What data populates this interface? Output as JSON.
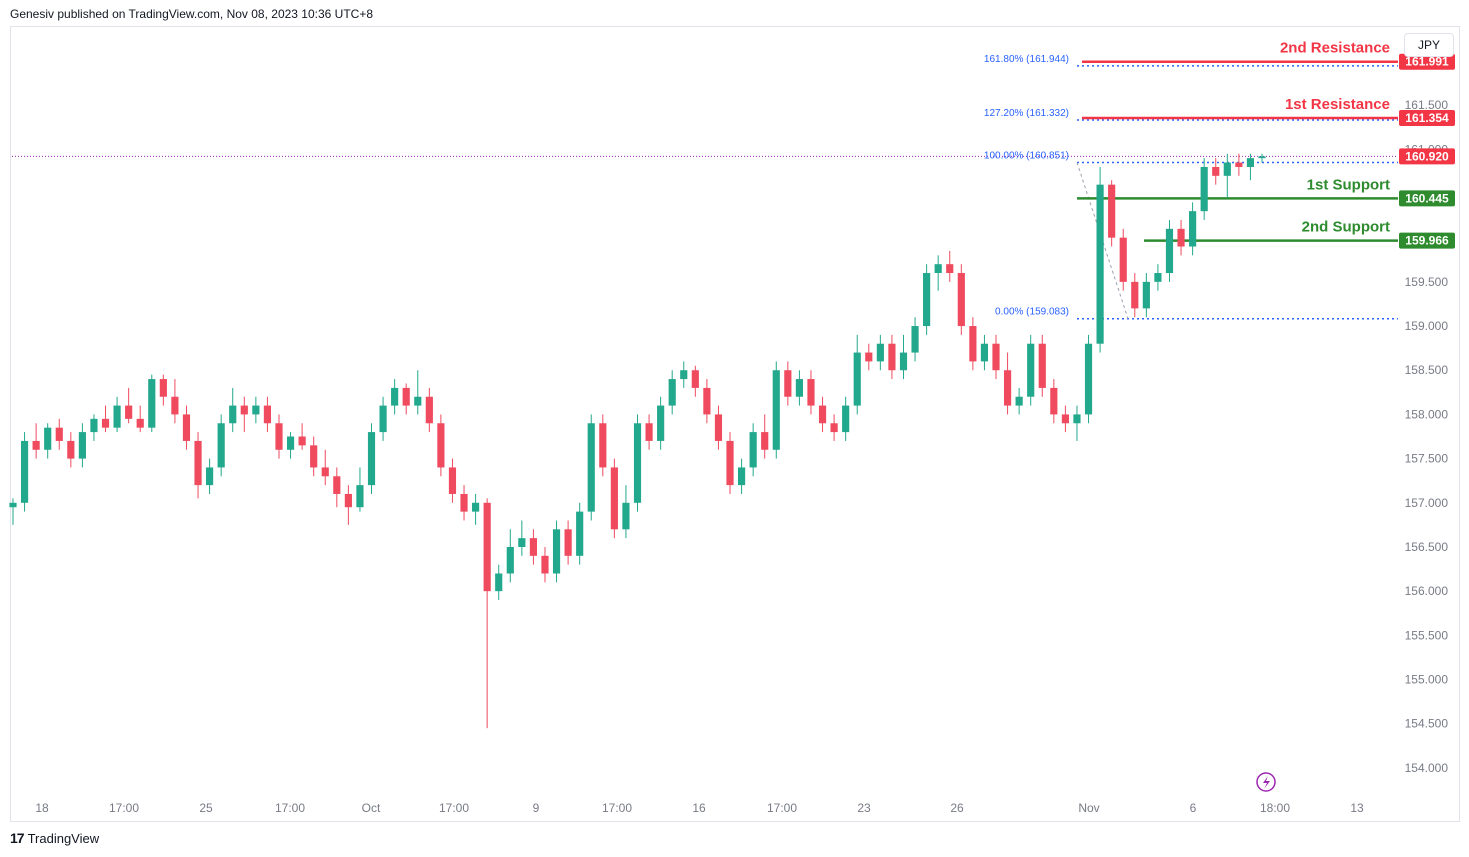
{
  "header": {
    "publisher_text": "Genesiv published on TradingView.com, Nov 08, 2023 10:36 UTC+8"
  },
  "footer": {
    "brand": "TradingView",
    "logo_mark": "17"
  },
  "currency_label": "JPY",
  "colors": {
    "up": "#22a88c",
    "down": "#ef4a5e",
    "resistance": "#f23645",
    "support": "#2e8b2e",
    "fib": "#2962ff",
    "fib_text": "#2962ff",
    "last_price_line": "#9c27b0",
    "grid_text": "#787b86"
  },
  "chart_data": {
    "type": "candlestick",
    "title": "",
    "currency": "JPY",
    "ylim": [
      153.75,
      162.35
    ],
    "y_ticks": [
      "161.500",
      "161.000",
      "159.500",
      "159.000",
      "158.500",
      "158.000",
      "157.500",
      "157.000",
      "156.500",
      "156.000",
      "155.500",
      "155.000",
      "154.500",
      "154.000"
    ],
    "x_ticks": [
      "18",
      "17:00",
      "25",
      "17:00",
      "Oct",
      "17:00",
      "9",
      "17:00",
      "16",
      "17:00",
      "23",
      "26",
      "Nov",
      "6",
      "18:00",
      "13"
    ],
    "levels": [
      {
        "name": "2nd Resistance",
        "value": 161.991,
        "label": "161.991",
        "kind": "resistance"
      },
      {
        "name": "1st Resistance",
        "value": 161.354,
        "label": "161.354",
        "kind": "resistance"
      },
      {
        "name": "1st Support",
        "value": 160.445,
        "label": "160.445",
        "kind": "support"
      },
      {
        "name": "2nd Support",
        "value": 159.966,
        "label": "159.966",
        "kind": "support"
      }
    ],
    "last_price": {
      "value": 160.92,
      "label": "160.920"
    },
    "fibonacci": [
      {
        "label": "161.80% (161.944)",
        "value": 161.944
      },
      {
        "label": "127.20% (161.332)",
        "value": 161.332
      },
      {
        "label": "100.00% (160.851)",
        "value": 160.851
      },
      {
        "label": "0.00% (159.083)",
        "value": 159.083
      }
    ],
    "candles": [
      {
        "o": 156.95,
        "h": 157.05,
        "l": 156.75,
        "c": 157.0
      },
      {
        "o": 157.0,
        "h": 157.8,
        "l": 156.9,
        "c": 157.7
      },
      {
        "o": 157.7,
        "h": 157.9,
        "l": 157.5,
        "c": 157.6
      },
      {
        "o": 157.6,
        "h": 157.9,
        "l": 157.5,
        "c": 157.85
      },
      {
        "o": 157.85,
        "h": 157.95,
        "l": 157.6,
        "c": 157.7
      },
      {
        "o": 157.7,
        "h": 157.8,
        "l": 157.4,
        "c": 157.5
      },
      {
        "o": 157.5,
        "h": 157.9,
        "l": 157.4,
        "c": 157.8
      },
      {
        "o": 157.8,
        "h": 158.0,
        "l": 157.7,
        "c": 157.95
      },
      {
        "o": 157.95,
        "h": 158.1,
        "l": 157.8,
        "c": 157.85
      },
      {
        "o": 157.85,
        "h": 158.2,
        "l": 157.8,
        "c": 158.1
      },
      {
        "o": 158.1,
        "h": 158.3,
        "l": 157.9,
        "c": 157.95
      },
      {
        "o": 157.95,
        "h": 158.1,
        "l": 157.8,
        "c": 157.85
      },
      {
        "o": 157.85,
        "h": 158.45,
        "l": 157.8,
        "c": 158.4
      },
      {
        "o": 158.4,
        "h": 158.45,
        "l": 158.1,
        "c": 158.2
      },
      {
        "o": 158.2,
        "h": 158.4,
        "l": 157.9,
        "c": 158.0
      },
      {
        "o": 158.0,
        "h": 158.1,
        "l": 157.6,
        "c": 157.7
      },
      {
        "o": 157.7,
        "h": 157.8,
        "l": 157.05,
        "c": 157.2
      },
      {
        "o": 157.2,
        "h": 157.5,
        "l": 157.1,
        "c": 157.4
      },
      {
        "o": 157.4,
        "h": 158.0,
        "l": 157.3,
        "c": 157.9
      },
      {
        "o": 157.9,
        "h": 158.3,
        "l": 157.8,
        "c": 158.1
      },
      {
        "o": 158.1,
        "h": 158.2,
        "l": 157.8,
        "c": 158.0
      },
      {
        "o": 158.0,
        "h": 158.2,
        "l": 157.9,
        "c": 158.1
      },
      {
        "o": 158.1,
        "h": 158.2,
        "l": 157.8,
        "c": 157.9
      },
      {
        "o": 157.9,
        "h": 158.0,
        "l": 157.5,
        "c": 157.6
      },
      {
        "o": 157.6,
        "h": 157.8,
        "l": 157.5,
        "c": 157.75
      },
      {
        "o": 157.75,
        "h": 157.9,
        "l": 157.6,
        "c": 157.65
      },
      {
        "o": 157.65,
        "h": 157.75,
        "l": 157.3,
        "c": 157.4
      },
      {
        "o": 157.4,
        "h": 157.6,
        "l": 157.2,
        "c": 157.3
      },
      {
        "o": 157.3,
        "h": 157.4,
        "l": 156.95,
        "c": 157.1
      },
      {
        "o": 157.1,
        "h": 157.2,
        "l": 156.75,
        "c": 156.95
      },
      {
        "o": 156.95,
        "h": 157.4,
        "l": 156.9,
        "c": 157.2
      },
      {
        "o": 157.2,
        "h": 157.9,
        "l": 157.1,
        "c": 157.8
      },
      {
        "o": 157.8,
        "h": 158.2,
        "l": 157.7,
        "c": 158.1
      },
      {
        "o": 158.1,
        "h": 158.4,
        "l": 158.0,
        "c": 158.3
      },
      {
        "o": 158.3,
        "h": 158.35,
        "l": 158.0,
        "c": 158.1
      },
      {
        "o": 158.1,
        "h": 158.5,
        "l": 158.0,
        "c": 158.2
      },
      {
        "o": 158.2,
        "h": 158.3,
        "l": 157.8,
        "c": 157.9
      },
      {
        "o": 157.9,
        "h": 158.0,
        "l": 157.3,
        "c": 157.4
      },
      {
        "o": 157.4,
        "h": 157.5,
        "l": 157.0,
        "c": 157.1
      },
      {
        "o": 157.1,
        "h": 157.2,
        "l": 156.8,
        "c": 156.9
      },
      {
        "o": 156.9,
        "h": 157.1,
        "l": 156.75,
        "c": 157.0
      },
      {
        "o": 157.0,
        "h": 157.05,
        "l": 154.45,
        "c": 156.0
      },
      {
        "o": 156.0,
        "h": 156.3,
        "l": 155.9,
        "c": 156.2
      },
      {
        "o": 156.2,
        "h": 156.7,
        "l": 156.1,
        "c": 156.5
      },
      {
        "o": 156.5,
        "h": 156.8,
        "l": 156.4,
        "c": 156.6
      },
      {
        "o": 156.6,
        "h": 156.7,
        "l": 156.3,
        "c": 156.4
      },
      {
        "o": 156.4,
        "h": 156.5,
        "l": 156.1,
        "c": 156.2
      },
      {
        "o": 156.2,
        "h": 156.8,
        "l": 156.1,
        "c": 156.7
      },
      {
        "o": 156.7,
        "h": 156.8,
        "l": 156.3,
        "c": 156.4
      },
      {
        "o": 156.4,
        "h": 157.0,
        "l": 156.3,
        "c": 156.9
      },
      {
        "o": 156.9,
        "h": 158.0,
        "l": 156.8,
        "c": 157.9
      },
      {
        "o": 157.9,
        "h": 158.0,
        "l": 157.3,
        "c": 157.4
      },
      {
        "o": 157.4,
        "h": 157.5,
        "l": 156.6,
        "c": 156.7
      },
      {
        "o": 156.7,
        "h": 157.2,
        "l": 156.6,
        "c": 157.0
      },
      {
        "o": 157.0,
        "h": 158.0,
        "l": 156.9,
        "c": 157.9
      },
      {
        "o": 157.9,
        "h": 158.0,
        "l": 157.6,
        "c": 157.7
      },
      {
        "o": 157.7,
        "h": 158.2,
        "l": 157.6,
        "c": 158.1
      },
      {
        "o": 158.1,
        "h": 158.5,
        "l": 158.0,
        "c": 158.4
      },
      {
        "o": 158.4,
        "h": 158.6,
        "l": 158.3,
        "c": 158.5
      },
      {
        "o": 158.5,
        "h": 158.55,
        "l": 158.2,
        "c": 158.3
      },
      {
        "o": 158.3,
        "h": 158.4,
        "l": 157.9,
        "c": 158.0
      },
      {
        "o": 158.0,
        "h": 158.1,
        "l": 157.6,
        "c": 157.7
      },
      {
        "o": 157.7,
        "h": 157.8,
        "l": 157.1,
        "c": 157.2
      },
      {
        "o": 157.2,
        "h": 157.5,
        "l": 157.1,
        "c": 157.4
      },
      {
        "o": 157.4,
        "h": 157.9,
        "l": 157.3,
        "c": 157.8
      },
      {
        "o": 157.8,
        "h": 158.0,
        "l": 157.5,
        "c": 157.6
      },
      {
        "o": 157.6,
        "h": 158.6,
        "l": 157.5,
        "c": 158.5
      },
      {
        "o": 158.5,
        "h": 158.6,
        "l": 158.1,
        "c": 158.2
      },
      {
        "o": 158.2,
        "h": 158.5,
        "l": 158.1,
        "c": 158.4
      },
      {
        "o": 158.4,
        "h": 158.5,
        "l": 158.0,
        "c": 158.1
      },
      {
        "o": 158.1,
        "h": 158.2,
        "l": 157.8,
        "c": 157.9
      },
      {
        "o": 157.9,
        "h": 158.0,
        "l": 157.7,
        "c": 157.8
      },
      {
        "o": 157.8,
        "h": 158.2,
        "l": 157.7,
        "c": 158.1
      },
      {
        "o": 158.1,
        "h": 158.9,
        "l": 158.0,
        "c": 158.7
      },
      {
        "o": 158.7,
        "h": 158.8,
        "l": 158.5,
        "c": 158.6
      },
      {
        "o": 158.6,
        "h": 158.9,
        "l": 158.5,
        "c": 158.8
      },
      {
        "o": 158.8,
        "h": 158.9,
        "l": 158.4,
        "c": 158.5
      },
      {
        "o": 158.5,
        "h": 158.9,
        "l": 158.4,
        "c": 158.7
      },
      {
        "o": 158.7,
        "h": 159.1,
        "l": 158.6,
        "c": 159.0
      },
      {
        "o": 159.0,
        "h": 159.7,
        "l": 158.9,
        "c": 159.6
      },
      {
        "o": 159.6,
        "h": 159.8,
        "l": 159.4,
        "c": 159.7
      },
      {
        "o": 159.7,
        "h": 159.85,
        "l": 159.5,
        "c": 159.6
      },
      {
        "o": 159.6,
        "h": 159.7,
        "l": 158.9,
        "c": 159.0
      },
      {
        "o": 159.0,
        "h": 159.1,
        "l": 158.5,
        "c": 158.6
      },
      {
        "o": 158.6,
        "h": 158.9,
        "l": 158.5,
        "c": 158.8
      },
      {
        "o": 158.8,
        "h": 158.9,
        "l": 158.4,
        "c": 158.5
      },
      {
        "o": 158.5,
        "h": 158.7,
        "l": 158.0,
        "c": 158.1
      },
      {
        "o": 158.1,
        "h": 158.3,
        "l": 158.0,
        "c": 158.2
      },
      {
        "o": 158.2,
        "h": 158.9,
        "l": 158.1,
        "c": 158.8
      },
      {
        "o": 158.8,
        "h": 158.9,
        "l": 158.2,
        "c": 158.3
      },
      {
        "o": 158.3,
        "h": 158.4,
        "l": 157.9,
        "c": 158.0
      },
      {
        "o": 158.0,
        "h": 158.1,
        "l": 157.8,
        "c": 157.9
      },
      {
        "o": 157.9,
        "h": 158.1,
        "l": 157.7,
        "c": 158.0
      },
      {
        "o": 158.0,
        "h": 158.9,
        "l": 157.9,
        "c": 158.8
      },
      {
        "o": 158.8,
        "h": 160.8,
        "l": 158.7,
        "c": 160.6
      },
      {
        "o": 160.6,
        "h": 160.65,
        "l": 159.9,
        "c": 160.0
      },
      {
        "o": 160.0,
        "h": 160.1,
        "l": 159.4,
        "c": 159.5
      },
      {
        "o": 159.5,
        "h": 159.6,
        "l": 159.1,
        "c": 159.2
      },
      {
        "o": 159.2,
        "h": 159.6,
        "l": 159.1,
        "c": 159.5
      },
      {
        "o": 159.5,
        "h": 159.7,
        "l": 159.4,
        "c": 159.6
      },
      {
        "o": 159.6,
        "h": 160.2,
        "l": 159.5,
        "c": 160.1
      },
      {
        "o": 160.1,
        "h": 160.2,
        "l": 159.8,
        "c": 159.9
      },
      {
        "o": 159.9,
        "h": 160.4,
        "l": 159.8,
        "c": 160.3
      },
      {
        "o": 160.3,
        "h": 160.9,
        "l": 160.2,
        "c": 160.8
      },
      {
        "o": 160.8,
        "h": 160.9,
        "l": 160.6,
        "c": 160.7
      },
      {
        "o": 160.7,
        "h": 160.95,
        "l": 160.45,
        "c": 160.85
      },
      {
        "o": 160.85,
        "h": 160.95,
        "l": 160.7,
        "c": 160.8
      },
      {
        "o": 160.8,
        "h": 160.95,
        "l": 160.65,
        "c": 160.9
      },
      {
        "o": 160.9,
        "h": 160.95,
        "l": 160.85,
        "c": 160.92
      }
    ]
  }
}
